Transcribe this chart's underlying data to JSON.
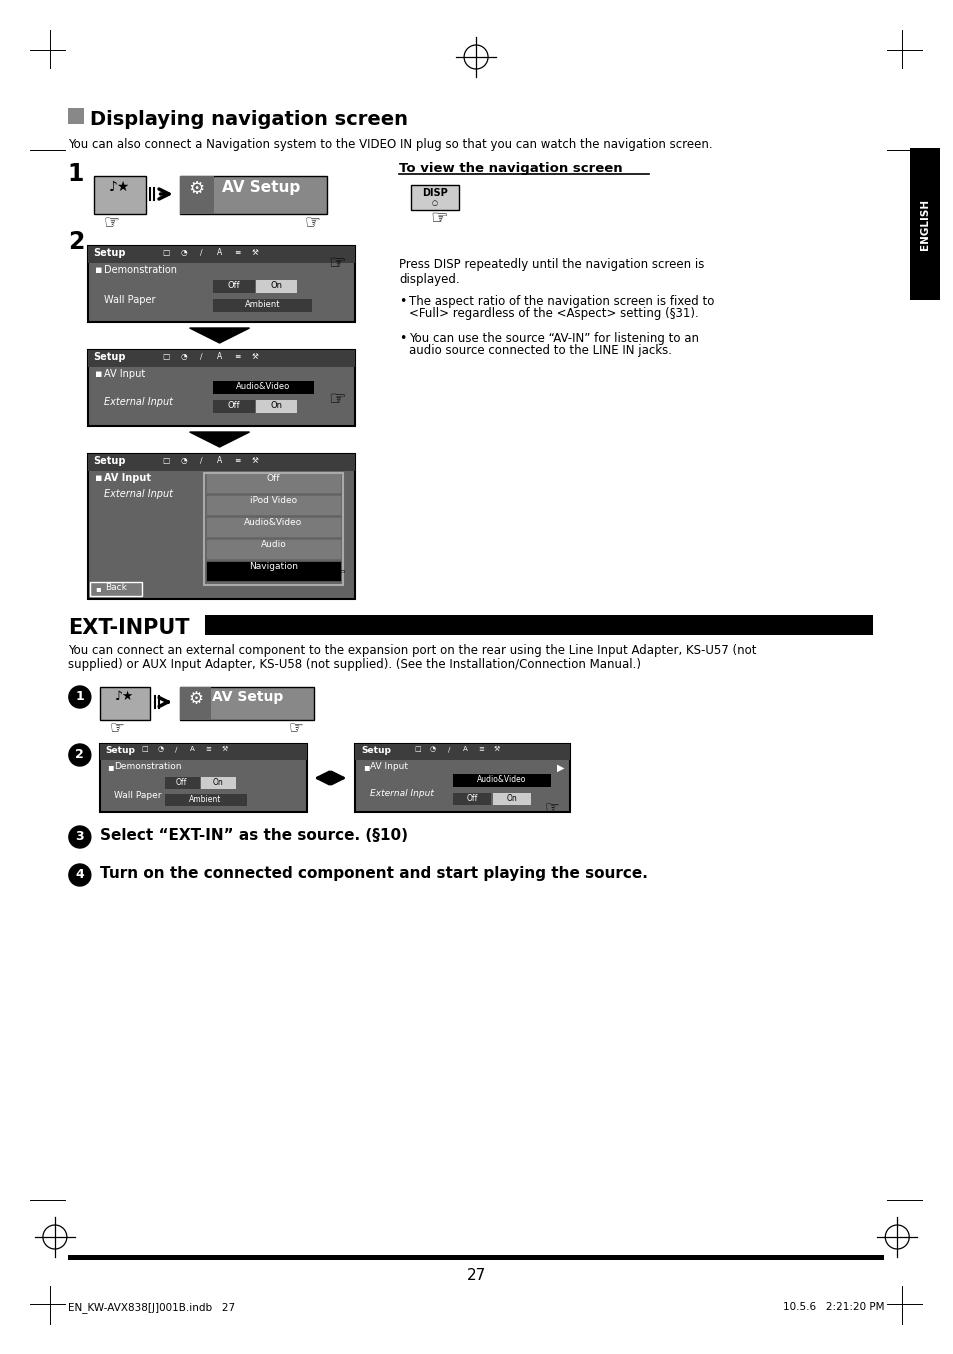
{
  "page_bg": "#ffffff",
  "page_num": "27",
  "section1_title": "Displaying navigation screen",
  "section1_body": "You can also connect a Navigation system to the VIDEO IN plug so that you can watch the navigation screen.",
  "section2_title": "EXT-INPUT",
  "section2_body_line1": "You can connect an external component to the expansion port on the rear using the Line Input Adapter, KS-U57 (not",
  "section2_body_line2": "supplied) or AUX Input Adapter, KS-U58 (not supplied). (See the Installation/Connection Manual.)",
  "right_section_title": "To view the navigation screen",
  "right_para": "Press DISP repeatedly until the navigation screen is\ndisplayed.",
  "bullet1_line1": "The aspect ratio of the navigation screen is fixed to",
  "bullet1_line2": "<Full> regardless of the <Aspect> setting (§31).",
  "bullet2_line1": "You can use the source “AV-IN” for listening to an",
  "bullet2_line2": "audio source connected to the LINE IN jacks.",
  "step3_text": "Select “EXT-IN” as the source. (§10)",
  "step4_text": "Turn on the connected component and start playing the source.",
  "footer_left": "EN_KW-AVX838[J]001B.indb   27",
  "footer_right": "10.5.6   2:21:20 PM",
  "english_label": "ENGLISH",
  "setup_dark": "#636363",
  "setup_header": "#3d3d3d",
  "setup_mid": "#7a7a7a",
  "black": "#000000",
  "white": "#ffffff",
  "light_gray": "#cccccc",
  "dark_btn": "#3a3a3a",
  "av_setup_gray": "#888888"
}
